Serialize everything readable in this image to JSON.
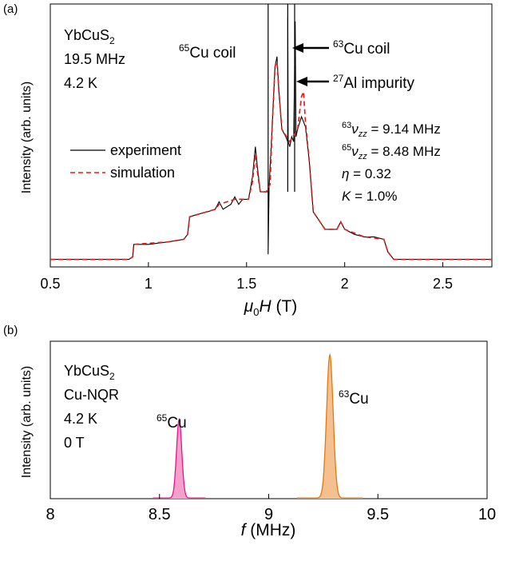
{
  "chart_data": [
    {
      "panel_label": "(a)",
      "type": "line",
      "xlabel_prefix": "μ",
      "xlabel_sub": "0",
      "xlabel_italic": "H",
      "xlabel_unit": " (T)",
      "ylabel": "Intensity (arb. units)",
      "xlim": [
        0.5,
        2.75
      ],
      "xticks": [
        0.5,
        1,
        1.5,
        2,
        2.5
      ],
      "xtick_labels": [
        "0.5",
        "1",
        "1.5",
        "2",
        "2.5"
      ],
      "ylim": [
        0,
        1.05
      ],
      "info": {
        "line1_main": "YbCuS",
        "line1_sub": "2",
        "line2": "19.5 MHz",
        "line3": "4.2 K"
      },
      "legend": [
        {
          "name": "experiment",
          "color": "#000000",
          "dash": "solid"
        },
        {
          "name": "simulation",
          "color": "#e0201a",
          "dash": "dashed"
        }
      ],
      "annotations": {
        "cu65_coil_sup": "65",
        "cu65_coil_text": "Cu coil",
        "cu63_coil_sup": "63",
        "cu63_coil_text": "Cu coil",
        "al_sup": "27",
        "al_text": "Al impurity"
      },
      "params": {
        "p1_sup": "63",
        "p1_nu": "ν",
        "p1_sub": "zz",
        "p1_val": " = 9.14 MHz",
        "p2_sup": "65",
        "p2_nu": "ν",
        "p2_sub": "zz",
        "p2_val": " = 8.48 MHz",
        "p3_sym": "η",
        "p3_val": " = 0.32",
        "p4_sym": "K",
        "p4_val": " = 1.0%"
      },
      "coil_lines_x": [
        1.61,
        1.71,
        1.745
      ],
      "series": [
        {
          "name": "experiment",
          "color": "#000000",
          "points": [
            [
              0.5,
              0.03
            ],
            [
              0.6,
              0.03
            ],
            [
              0.7,
              0.03
            ],
            [
              0.8,
              0.03
            ],
            [
              0.9,
              0.03
            ],
            [
              0.92,
              0.04
            ],
            [
              0.925,
              0.09
            ],
            [
              0.95,
              0.09
            ],
            [
              1.0,
              0.09
            ],
            [
              1.1,
              0.1
            ],
            [
              1.18,
              0.11
            ],
            [
              1.2,
              0.13
            ],
            [
              1.21,
              0.2
            ],
            [
              1.25,
              0.21
            ],
            [
              1.3,
              0.22
            ],
            [
              1.34,
              0.23
            ],
            [
              1.36,
              0.26
            ],
            [
              1.38,
              0.23
            ],
            [
              1.42,
              0.25
            ],
            [
              1.44,
              0.28
            ],
            [
              1.46,
              0.25
            ],
            [
              1.48,
              0.27
            ],
            [
              1.51,
              0.27
            ],
            [
              1.53,
              0.36
            ],
            [
              1.545,
              0.48
            ],
            [
              1.555,
              0.4
            ],
            [
              1.57,
              0.3
            ],
            [
              1.6,
              0.3
            ],
            [
              1.61,
              0.3
            ],
            [
              1.61,
              0.05
            ],
            [
              1.615,
              0.32
            ],
            [
              1.63,
              0.55
            ],
            [
              1.645,
              0.8
            ],
            [
              1.655,
              0.84
            ],
            [
              1.665,
              0.7
            ],
            [
              1.68,
              0.55
            ],
            [
              1.7,
              0.52
            ],
            [
              1.71,
              0.5
            ],
            [
              1.71,
              1.0
            ],
            [
              1.712,
              0.5
            ],
            [
              1.72,
              0.48
            ],
            [
              1.73,
              0.52
            ],
            [
              1.74,
              0.5
            ],
            [
              1.745,
              0.8
            ],
            [
              1.748,
              0.98
            ],
            [
              1.752,
              0.52
            ],
            [
              1.76,
              0.55
            ],
            [
              1.78,
              0.6
            ],
            [
              1.8,
              0.56
            ],
            [
              1.82,
              0.42
            ],
            [
              1.84,
              0.22
            ],
            [
              1.9,
              0.15
            ],
            [
              1.96,
              0.15
            ],
            [
              1.98,
              0.18
            ],
            [
              2.0,
              0.15
            ],
            [
              2.05,
              0.13
            ],
            [
              2.1,
              0.12
            ],
            [
              2.15,
              0.12
            ],
            [
              2.2,
              0.11
            ],
            [
              2.22,
              0.06
            ],
            [
              2.25,
              0.03
            ],
            [
              2.4,
              0.03
            ],
            [
              2.6,
              0.03
            ],
            [
              2.75,
              0.03
            ]
          ]
        },
        {
          "name": "simulation",
          "color": "#e0201a",
          "points": [
            [
              0.5,
              0.03
            ],
            [
              0.9,
              0.03
            ],
            [
              0.92,
              0.04
            ],
            [
              0.925,
              0.09
            ],
            [
              1.1,
              0.1
            ],
            [
              1.18,
              0.11
            ],
            [
              1.2,
              0.13
            ],
            [
              1.21,
              0.2
            ],
            [
              1.34,
              0.23
            ],
            [
              1.36,
              0.25
            ],
            [
              1.44,
              0.27
            ],
            [
              1.51,
              0.27
            ],
            [
              1.53,
              0.34
            ],
            [
              1.545,
              0.45
            ],
            [
              1.555,
              0.38
            ],
            [
              1.57,
              0.3
            ],
            [
              1.6,
              0.3
            ],
            [
              1.62,
              0.33
            ],
            [
              1.63,
              0.55
            ],
            [
              1.645,
              0.8
            ],
            [
              1.655,
              0.82
            ],
            [
              1.665,
              0.7
            ],
            [
              1.68,
              0.55
            ],
            [
              1.72,
              0.5
            ],
            [
              1.76,
              0.55
            ],
            [
              1.78,
              0.68
            ],
            [
              1.79,
              0.7
            ],
            [
              1.8,
              0.58
            ],
            [
              1.82,
              0.42
            ],
            [
              1.84,
              0.22
            ],
            [
              1.9,
              0.15
            ],
            [
              1.96,
              0.15
            ],
            [
              1.98,
              0.18
            ],
            [
              2.0,
              0.15
            ],
            [
              2.1,
              0.12
            ],
            [
              2.2,
              0.11
            ],
            [
              2.22,
              0.06
            ],
            [
              2.25,
              0.03
            ],
            [
              2.75,
              0.03
            ]
          ]
        }
      ]
    },
    {
      "panel_label": "(b)",
      "type": "line",
      "xlabel_italic": "f",
      "xlabel_unit": " (MHz)",
      "ylabel": "Intensity (arb. units)",
      "xlim": [
        8,
        10
      ],
      "xticks": [
        8,
        8.5,
        9,
        9.5,
        10
      ],
      "xtick_labels": [
        "8",
        "8.5",
        "9",
        "9.5",
        "10"
      ],
      "ylim": [
        0,
        1.1
      ],
      "info": {
        "line1_main": "YbCuS",
        "line1_sub": "2",
        "line2": "Cu-NQR",
        "line3": "4.2 K",
        "line4": "0 T"
      },
      "series": [
        {
          "name": "65Cu",
          "label_sup": "65",
          "label_text": "Cu",
          "center": 8.59,
          "width": 0.012,
          "height": 0.55,
          "color": "#e0188c",
          "fill": "#f5a0cc"
        },
        {
          "name": "63Cu",
          "label_sup": "63",
          "label_text": "Cu",
          "center": 9.28,
          "width": 0.015,
          "height": 1.0,
          "color": "#e07a10",
          "fill": "#f5c090"
        }
      ]
    }
  ]
}
